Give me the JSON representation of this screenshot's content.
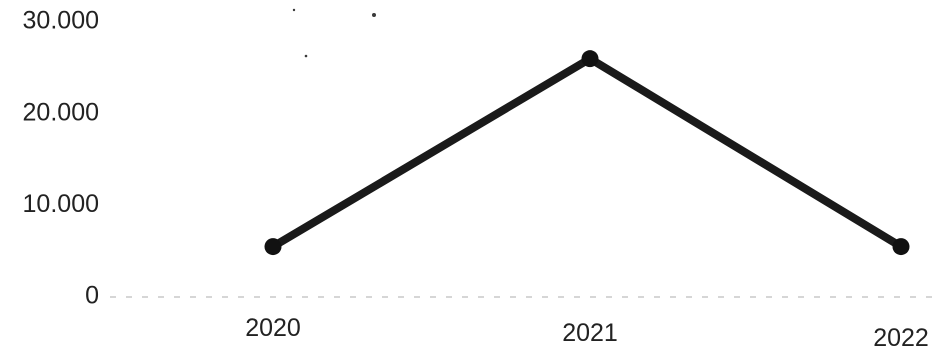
{
  "chart_data": {
    "type": "line",
    "categories": [
      "2020",
      "2021",
      "2022"
    ],
    "series": [
      {
        "values": [
          5500,
          26000,
          5500
        ]
      }
    ],
    "y_ticks": [
      {
        "value": 0,
        "label": "0"
      },
      {
        "value": 10000,
        "label": "10.000"
      },
      {
        "value": 20000,
        "label": "20.000"
      },
      {
        "value": 30000,
        "label": "30.000"
      }
    ],
    "ylim": [
      0,
      30000
    ],
    "title": "",
    "xlabel": "",
    "ylabel": "",
    "grid": false,
    "legend": "none",
    "colors": {
      "line": "#1a1a1a",
      "marker": "#111111",
      "baseline": "#c8c8c8"
    }
  }
}
